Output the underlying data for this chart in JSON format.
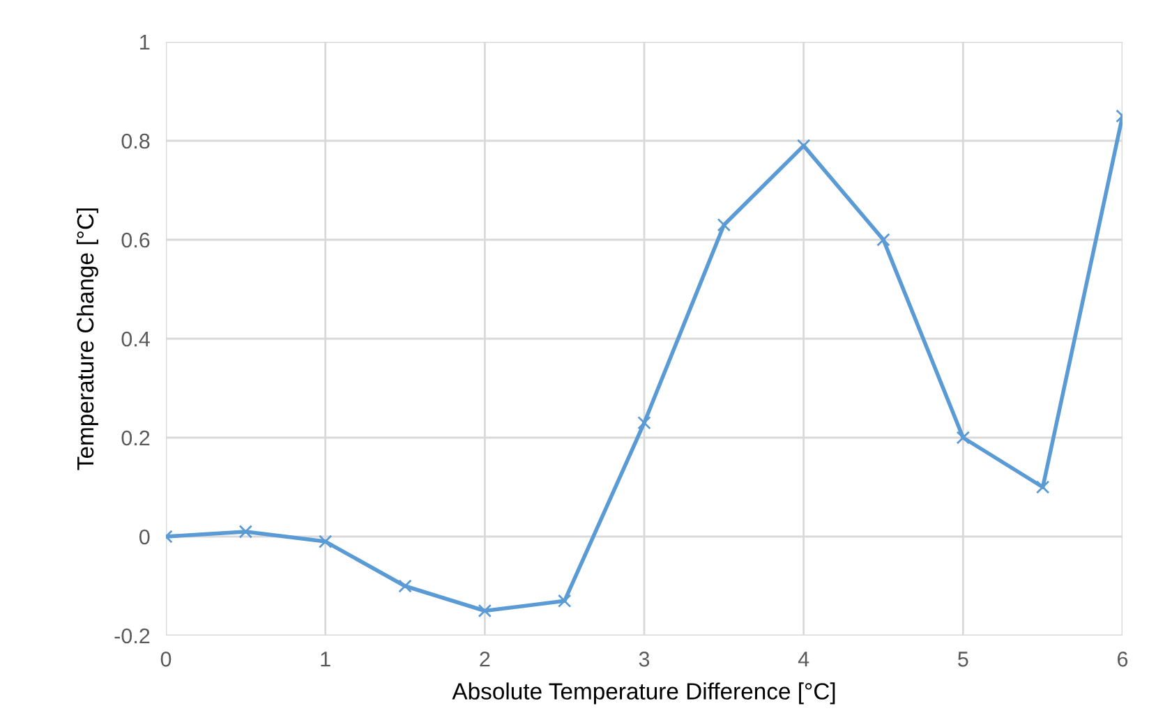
{
  "chart_data": {
    "type": "line",
    "xlabel": "Absolute Temperature Difference [°C]",
    "ylabel": "Temperature Change [°C]",
    "x": [
      0,
      0.5,
      1,
      1.5,
      2,
      2.5,
      3,
      3.5,
      4,
      4.5,
      5,
      5.5,
      6
    ],
    "series": [
      {
        "color": "#5b9bd5",
        "values": [
          0,
          0.01,
          -0.01,
          -0.1,
          -0.15,
          -0.13,
          0.23,
          0.63,
          0.79,
          0.6,
          0.2,
          0.1,
          0.85
        ]
      }
    ],
    "xlim": [
      0,
      6
    ],
    "xticks": [
      0,
      1,
      2,
      3,
      4,
      5,
      6
    ],
    "ylim": [
      -0.2,
      1
    ],
    "yticks": [
      -0.2,
      0,
      0.2,
      0.4,
      0.6,
      0.8,
      1
    ],
    "grid": true,
    "marker": "cross",
    "line_style": "solid"
  }
}
